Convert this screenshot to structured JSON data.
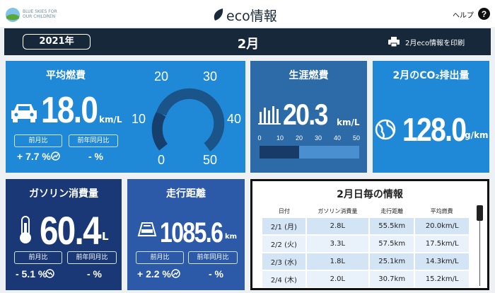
{
  "header": {
    "logo_line1": "BLUE SKIES FOR",
    "logo_line2": "OUR CHILDREN",
    "title": "eco情報",
    "help": "ヘルプ"
  },
  "toolbar": {
    "year": "2021年",
    "month": "2月",
    "print": "2月eco情報を印刷"
  },
  "avg_mileage": {
    "title": "平均燃費",
    "value": "18.0",
    "unit": "km/L",
    "prev_month_label": "前月比",
    "prev_year_label": "前年同月比",
    "prev_month_change": "+ 7.7 %",
    "prev_year_change": "- %",
    "gauge_labels": [
      "0",
      "10",
      "20",
      "30",
      "40",
      "50"
    ]
  },
  "lifetime_mileage": {
    "title": "生涯燃費",
    "value": "20.3",
    "unit": "km/L",
    "axis_labels": [
      "0",
      "10",
      "20",
      "30",
      "40",
      "50"
    ]
  },
  "co2": {
    "title": "2月のCO₂排出量",
    "value": "128.0",
    "unit": "g/km"
  },
  "fuel": {
    "title": "ガソリン消費量",
    "value": "60.4",
    "unit": "L",
    "prev_month_label": "前月比",
    "prev_year_label": "前年同月比",
    "prev_month_change": "- 5.1 %",
    "prev_year_change": "- %"
  },
  "distance": {
    "title": "走行距離",
    "value": "1085.6",
    "unit": "km",
    "prev_month_label": "前月比",
    "prev_year_label": "前年同月比",
    "prev_month_change": "+ 2.2 %",
    "prev_year_change": "- %"
  },
  "daily": {
    "title": "2月日毎の情報",
    "columns": [
      "日付",
      "ガソリン消費量",
      "走行距離",
      "平均燃費"
    ],
    "rows": [
      [
        "2/1 (月)",
        "2.8L",
        "55.5km",
        "20.0km/L"
      ],
      [
        "2/2 (火)",
        "3.3L",
        "57.5km",
        "17.5km/L"
      ],
      [
        "2/3 (水)",
        "1.8L",
        "25.1km",
        "14.3km/L"
      ],
      [
        "2/4 (木)",
        "2.0L",
        "30.7km",
        "15.2km/L"
      ]
    ]
  }
}
